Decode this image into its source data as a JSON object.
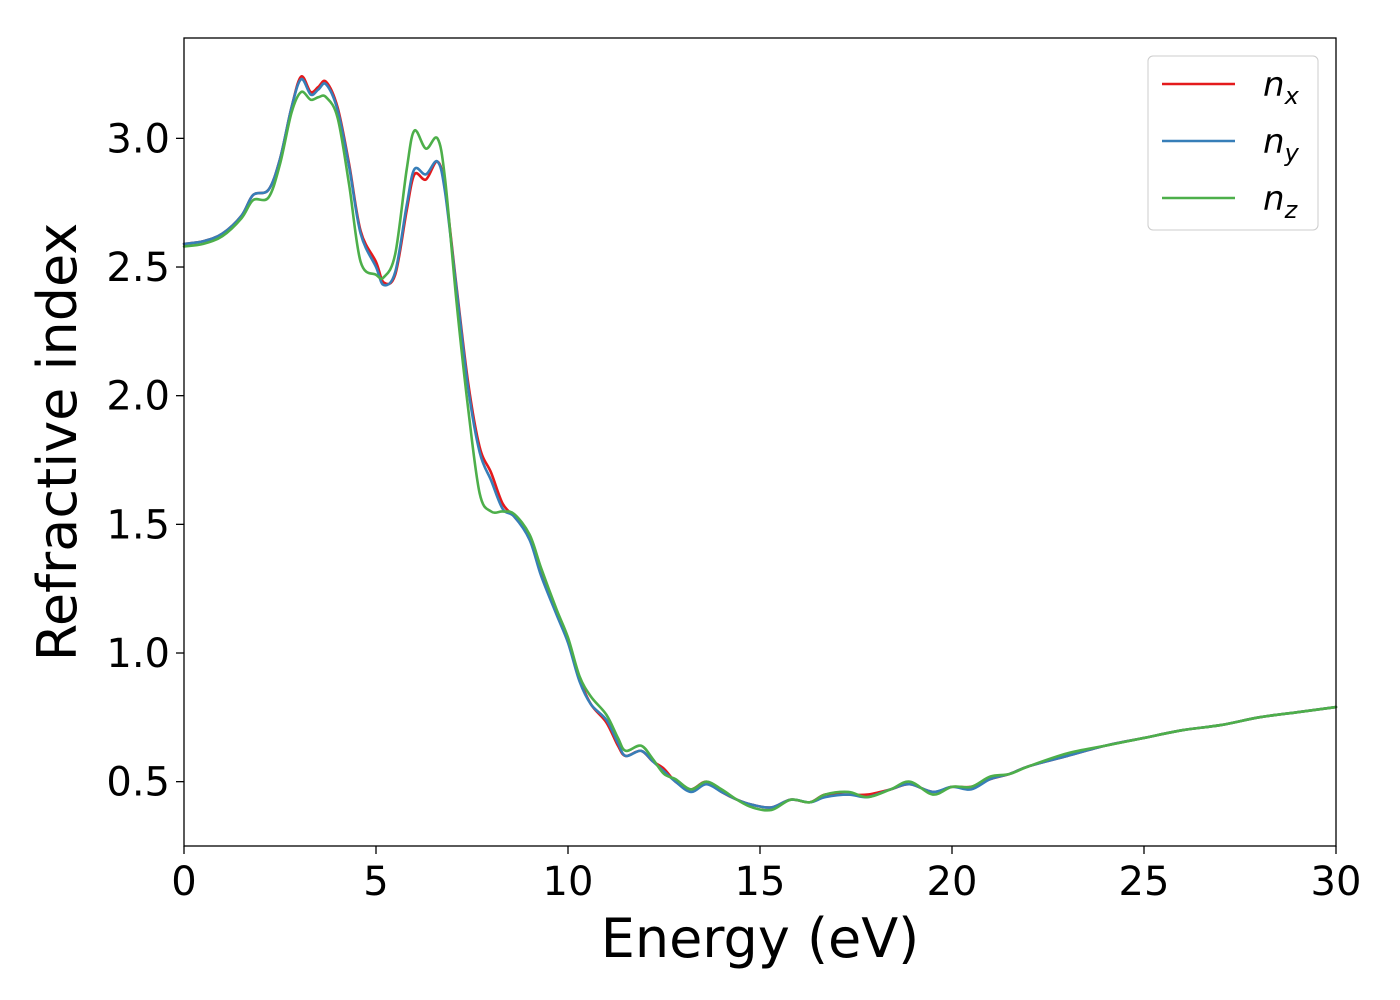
{
  "chart_data": {
    "type": "line",
    "xlabel": "Energy (eV)",
    "ylabel": "Refractive index",
    "xlim": [
      0,
      30
    ],
    "ylim": [
      0.25,
      3.39
    ],
    "xticks": [
      "0",
      "5",
      "10",
      "15",
      "20",
      "25",
      "30"
    ],
    "yticks": [
      "0.5",
      "1.0",
      "1.5",
      "2.0",
      "2.5",
      "3.0"
    ],
    "grid": false,
    "legend_position": "top-right",
    "series": [
      {
        "name": "n",
        "subscript": "x",
        "color": "#e41a1c",
        "points": [
          [
            0,
            2.59
          ],
          [
            0.5,
            2.6
          ],
          [
            1,
            2.63
          ],
          [
            1.5,
            2.7
          ],
          [
            1.8,
            2.78
          ],
          [
            2.2,
            2.8
          ],
          [
            2.5,
            2.92
          ],
          [
            2.8,
            3.12
          ],
          [
            3.05,
            3.24
          ],
          [
            3.3,
            3.18
          ],
          [
            3.5,
            3.2
          ],
          [
            3.7,
            3.22
          ],
          [
            4,
            3.12
          ],
          [
            4.3,
            2.9
          ],
          [
            4.6,
            2.64
          ],
          [
            5,
            2.52
          ],
          [
            5.2,
            2.44
          ],
          [
            5.5,
            2.47
          ],
          [
            5.8,
            2.72
          ],
          [
            6,
            2.86
          ],
          [
            6.3,
            2.84
          ],
          [
            6.6,
            2.91
          ],
          [
            6.8,
            2.8
          ],
          [
            7.1,
            2.42
          ],
          [
            7.4,
            2.05
          ],
          [
            7.7,
            1.8
          ],
          [
            8,
            1.7
          ],
          [
            8.3,
            1.58
          ],
          [
            8.6,
            1.53
          ],
          [
            9,
            1.45
          ],
          [
            9.3,
            1.31
          ],
          [
            9.7,
            1.16
          ],
          [
            10,
            1.05
          ],
          [
            10.3,
            0.9
          ],
          [
            10.6,
            0.8
          ],
          [
            11,
            0.73
          ],
          [
            11.3,
            0.64
          ],
          [
            11.5,
            0.6
          ],
          [
            11.9,
            0.62
          ],
          [
            12.2,
            0.58
          ],
          [
            12.5,
            0.55
          ],
          [
            12.8,
            0.5
          ],
          [
            13.2,
            0.47
          ],
          [
            13.6,
            0.5
          ],
          [
            14,
            0.46
          ],
          [
            14.4,
            0.43
          ],
          [
            14.8,
            0.41
          ],
          [
            15.3,
            0.4
          ],
          [
            15.8,
            0.43
          ],
          [
            16.3,
            0.42
          ],
          [
            16.7,
            0.45
          ],
          [
            17.3,
            0.45
          ],
          [
            17.8,
            0.45
          ],
          [
            18.4,
            0.47
          ],
          [
            18.9,
            0.49
          ],
          [
            19.5,
            0.46
          ],
          [
            20,
            0.48
          ],
          [
            20.5,
            0.48
          ],
          [
            21,
            0.51
          ],
          [
            21.5,
            0.53
          ],
          [
            22,
            0.56
          ],
          [
            23,
            0.6
          ],
          [
            24,
            0.64
          ],
          [
            25,
            0.67
          ],
          [
            26,
            0.7
          ],
          [
            27,
            0.72
          ],
          [
            28,
            0.75
          ],
          [
            29,
            0.77
          ],
          [
            30,
            0.79
          ]
        ]
      },
      {
        "name": "n",
        "subscript": "y",
        "color": "#377eb8",
        "points": [
          [
            0,
            2.59
          ],
          [
            0.5,
            2.6
          ],
          [
            1,
            2.63
          ],
          [
            1.5,
            2.7
          ],
          [
            1.8,
            2.78
          ],
          [
            2.2,
            2.8
          ],
          [
            2.5,
            2.92
          ],
          [
            2.8,
            3.12
          ],
          [
            3.05,
            3.23
          ],
          [
            3.3,
            3.17
          ],
          [
            3.5,
            3.19
          ],
          [
            3.7,
            3.21
          ],
          [
            4,
            3.11
          ],
          [
            4.3,
            2.89
          ],
          [
            4.6,
            2.63
          ],
          [
            5,
            2.5
          ],
          [
            5.2,
            2.43
          ],
          [
            5.5,
            2.48
          ],
          [
            5.8,
            2.74
          ],
          [
            6,
            2.88
          ],
          [
            6.3,
            2.86
          ],
          [
            6.6,
            2.91
          ],
          [
            6.8,
            2.79
          ],
          [
            7.1,
            2.41
          ],
          [
            7.4,
            2.03
          ],
          [
            7.7,
            1.78
          ],
          [
            8,
            1.67
          ],
          [
            8.3,
            1.56
          ],
          [
            8.6,
            1.53
          ],
          [
            9,
            1.44
          ],
          [
            9.3,
            1.3
          ],
          [
            9.7,
            1.15
          ],
          [
            10,
            1.04
          ],
          [
            10.3,
            0.89
          ],
          [
            10.6,
            0.8
          ],
          [
            11,
            0.74
          ],
          [
            11.3,
            0.65
          ],
          [
            11.5,
            0.6
          ],
          [
            11.9,
            0.62
          ],
          [
            12.2,
            0.58
          ],
          [
            12.5,
            0.54
          ],
          [
            12.8,
            0.5
          ],
          [
            13.2,
            0.46
          ],
          [
            13.6,
            0.49
          ],
          [
            14,
            0.46
          ],
          [
            14.4,
            0.43
          ],
          [
            14.8,
            0.41
          ],
          [
            15.3,
            0.4
          ],
          [
            15.8,
            0.43
          ],
          [
            16.3,
            0.42
          ],
          [
            16.7,
            0.44
          ],
          [
            17.3,
            0.45
          ],
          [
            17.8,
            0.44
          ],
          [
            18.4,
            0.47
          ],
          [
            18.9,
            0.49
          ],
          [
            19.5,
            0.46
          ],
          [
            20,
            0.48
          ],
          [
            20.5,
            0.47
          ],
          [
            21,
            0.51
          ],
          [
            21.5,
            0.53
          ],
          [
            22,
            0.56
          ],
          [
            23,
            0.6
          ],
          [
            24,
            0.64
          ],
          [
            25,
            0.67
          ],
          [
            26,
            0.7
          ],
          [
            27,
            0.72
          ],
          [
            28,
            0.75
          ],
          [
            29,
            0.77
          ],
          [
            30,
            0.79
          ]
        ]
      },
      {
        "name": "n",
        "subscript": "z",
        "color": "#4daf4a",
        "points": [
          [
            0,
            2.58
          ],
          [
            0.5,
            2.59
          ],
          [
            1,
            2.62
          ],
          [
            1.5,
            2.69
          ],
          [
            1.8,
            2.76
          ],
          [
            2.2,
            2.77
          ],
          [
            2.5,
            2.9
          ],
          [
            2.8,
            3.1
          ],
          [
            3.05,
            3.18
          ],
          [
            3.3,
            3.15
          ],
          [
            3.5,
            3.16
          ],
          [
            3.7,
            3.16
          ],
          [
            4,
            3.08
          ],
          [
            4.3,
            2.82
          ],
          [
            4.6,
            2.52
          ],
          [
            5,
            2.47
          ],
          [
            5.2,
            2.46
          ],
          [
            5.5,
            2.55
          ],
          [
            5.8,
            2.88
          ],
          [
            6,
            3.03
          ],
          [
            6.3,
            2.96
          ],
          [
            6.6,
            3.0
          ],
          [
            6.8,
            2.84
          ],
          [
            7.1,
            2.36
          ],
          [
            7.4,
            1.95
          ],
          [
            7.7,
            1.62
          ],
          [
            8,
            1.55
          ],
          [
            8.3,
            1.55
          ],
          [
            8.6,
            1.54
          ],
          [
            9,
            1.46
          ],
          [
            9.3,
            1.33
          ],
          [
            9.7,
            1.17
          ],
          [
            10,
            1.06
          ],
          [
            10.3,
            0.91
          ],
          [
            10.6,
            0.83
          ],
          [
            11,
            0.76
          ],
          [
            11.3,
            0.67
          ],
          [
            11.5,
            0.62
          ],
          [
            11.9,
            0.64
          ],
          [
            12.2,
            0.59
          ],
          [
            12.5,
            0.53
          ],
          [
            12.8,
            0.51
          ],
          [
            13.2,
            0.47
          ],
          [
            13.6,
            0.5
          ],
          [
            14,
            0.47
          ],
          [
            14.4,
            0.43
          ],
          [
            14.8,
            0.4
          ],
          [
            15.3,
            0.39
          ],
          [
            15.8,
            0.43
          ],
          [
            16.3,
            0.42
          ],
          [
            16.7,
            0.45
          ],
          [
            17.3,
            0.46
          ],
          [
            17.8,
            0.44
          ],
          [
            18.4,
            0.47
          ],
          [
            18.9,
            0.5
          ],
          [
            19.5,
            0.45
          ],
          [
            20,
            0.48
          ],
          [
            20.5,
            0.48
          ],
          [
            21,
            0.52
          ],
          [
            21.5,
            0.53
          ],
          [
            22,
            0.56
          ],
          [
            23,
            0.61
          ],
          [
            24,
            0.64
          ],
          [
            25,
            0.67
          ],
          [
            26,
            0.7
          ],
          [
            27,
            0.72
          ],
          [
            28,
            0.75
          ],
          [
            29,
            0.77
          ],
          [
            30,
            0.79
          ]
        ]
      }
    ]
  }
}
